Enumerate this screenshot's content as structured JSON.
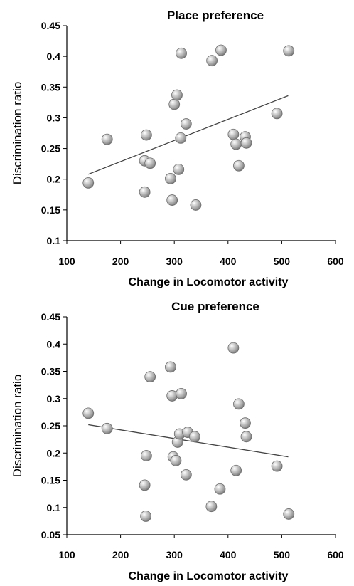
{
  "chart_data": [
    {
      "type": "scatter",
      "title": "Place preference",
      "xlabel": "Change in Locomotor activity",
      "ylabel": "Discrimination ratio",
      "xlim": [
        100,
        600
      ],
      "ylim": [
        0.1,
        0.45
      ],
      "xticks": [
        100,
        200,
        300,
        400,
        500,
        600
      ],
      "yticks": [
        0.1,
        0.15,
        0.2,
        0.25,
        0.3,
        0.35,
        0.4,
        0.45
      ],
      "ytick_labels": [
        "0.1",
        "0.15",
        "0.2",
        "0.25",
        "0.3",
        "0.35",
        "0.4",
        "0.45"
      ],
      "grid": false,
      "marker_color": "#a9a9a9",
      "trendline": {
        "x": [
          140,
          512
        ],
        "y": [
          0.208,
          0.336
        ],
        "color": "#444444"
      },
      "points": [
        {
          "x": 140,
          "y": 0.194
        },
        {
          "x": 175,
          "y": 0.265
        },
        {
          "x": 245,
          "y": 0.179
        },
        {
          "x": 245,
          "y": 0.23
        },
        {
          "x": 248,
          "y": 0.272
        },
        {
          "x": 255,
          "y": 0.226
        },
        {
          "x": 293,
          "y": 0.201
        },
        {
          "x": 296,
          "y": 0.166
        },
        {
          "x": 300,
          "y": 0.322
        },
        {
          "x": 305,
          "y": 0.337
        },
        {
          "x": 308,
          "y": 0.216
        },
        {
          "x": 312,
          "y": 0.267
        },
        {
          "x": 313,
          "y": 0.405
        },
        {
          "x": 322,
          "y": 0.29
        },
        {
          "x": 340,
          "y": 0.158
        },
        {
          "x": 370,
          "y": 0.393
        },
        {
          "x": 387,
          "y": 0.41
        },
        {
          "x": 410,
          "y": 0.273
        },
        {
          "x": 415,
          "y": 0.257
        },
        {
          "x": 420,
          "y": 0.222
        },
        {
          "x": 432,
          "y": 0.269
        },
        {
          "x": 434,
          "y": 0.259
        },
        {
          "x": 491,
          "y": 0.307
        },
        {
          "x": 513,
          "y": 0.409
        }
      ]
    },
    {
      "type": "scatter",
      "title": "Cue preference",
      "xlabel": "Change in Locomotor activity",
      "ylabel": "Discrimination ratio",
      "xlim": [
        100,
        600
      ],
      "ylim": [
        0.05,
        0.45
      ],
      "xticks": [
        100,
        200,
        300,
        400,
        500,
        600
      ],
      "yticks": [
        0.05,
        0.1,
        0.15,
        0.2,
        0.25,
        0.3,
        0.35,
        0.4,
        0.45
      ],
      "ytick_labels": [
        "0.05",
        "0.1",
        "0.15",
        "0.2",
        "0.25",
        "0.3",
        "0.35",
        "0.4",
        "0.45"
      ],
      "grid": false,
      "marker_color": "#a9a9a9",
      "trendline": {
        "x": [
          140,
          512
        ],
        "y": [
          0.252,
          0.193
        ],
        "color": "#444444"
      },
      "points": [
        {
          "x": 140,
          "y": 0.273
        },
        {
          "x": 175,
          "y": 0.245
        },
        {
          "x": 245,
          "y": 0.141
        },
        {
          "x": 247,
          "y": 0.084
        },
        {
          "x": 248,
          "y": 0.195
        },
        {
          "x": 255,
          "y": 0.34
        },
        {
          "x": 293,
          "y": 0.358
        },
        {
          "x": 296,
          "y": 0.305
        },
        {
          "x": 298,
          "y": 0.193
        },
        {
          "x": 303,
          "y": 0.186
        },
        {
          "x": 306,
          "y": 0.22
        },
        {
          "x": 310,
          "y": 0.235
        },
        {
          "x": 313,
          "y": 0.309
        },
        {
          "x": 322,
          "y": 0.16
        },
        {
          "x": 325,
          "y": 0.238
        },
        {
          "x": 338,
          "y": 0.23
        },
        {
          "x": 369,
          "y": 0.102
        },
        {
          "x": 385,
          "y": 0.134
        },
        {
          "x": 410,
          "y": 0.393
        },
        {
          "x": 415,
          "y": 0.168
        },
        {
          "x": 420,
          "y": 0.29
        },
        {
          "x": 432,
          "y": 0.255
        },
        {
          "x": 434,
          "y": 0.23
        },
        {
          "x": 491,
          "y": 0.176
        },
        {
          "x": 513,
          "y": 0.088
        }
      ]
    }
  ]
}
